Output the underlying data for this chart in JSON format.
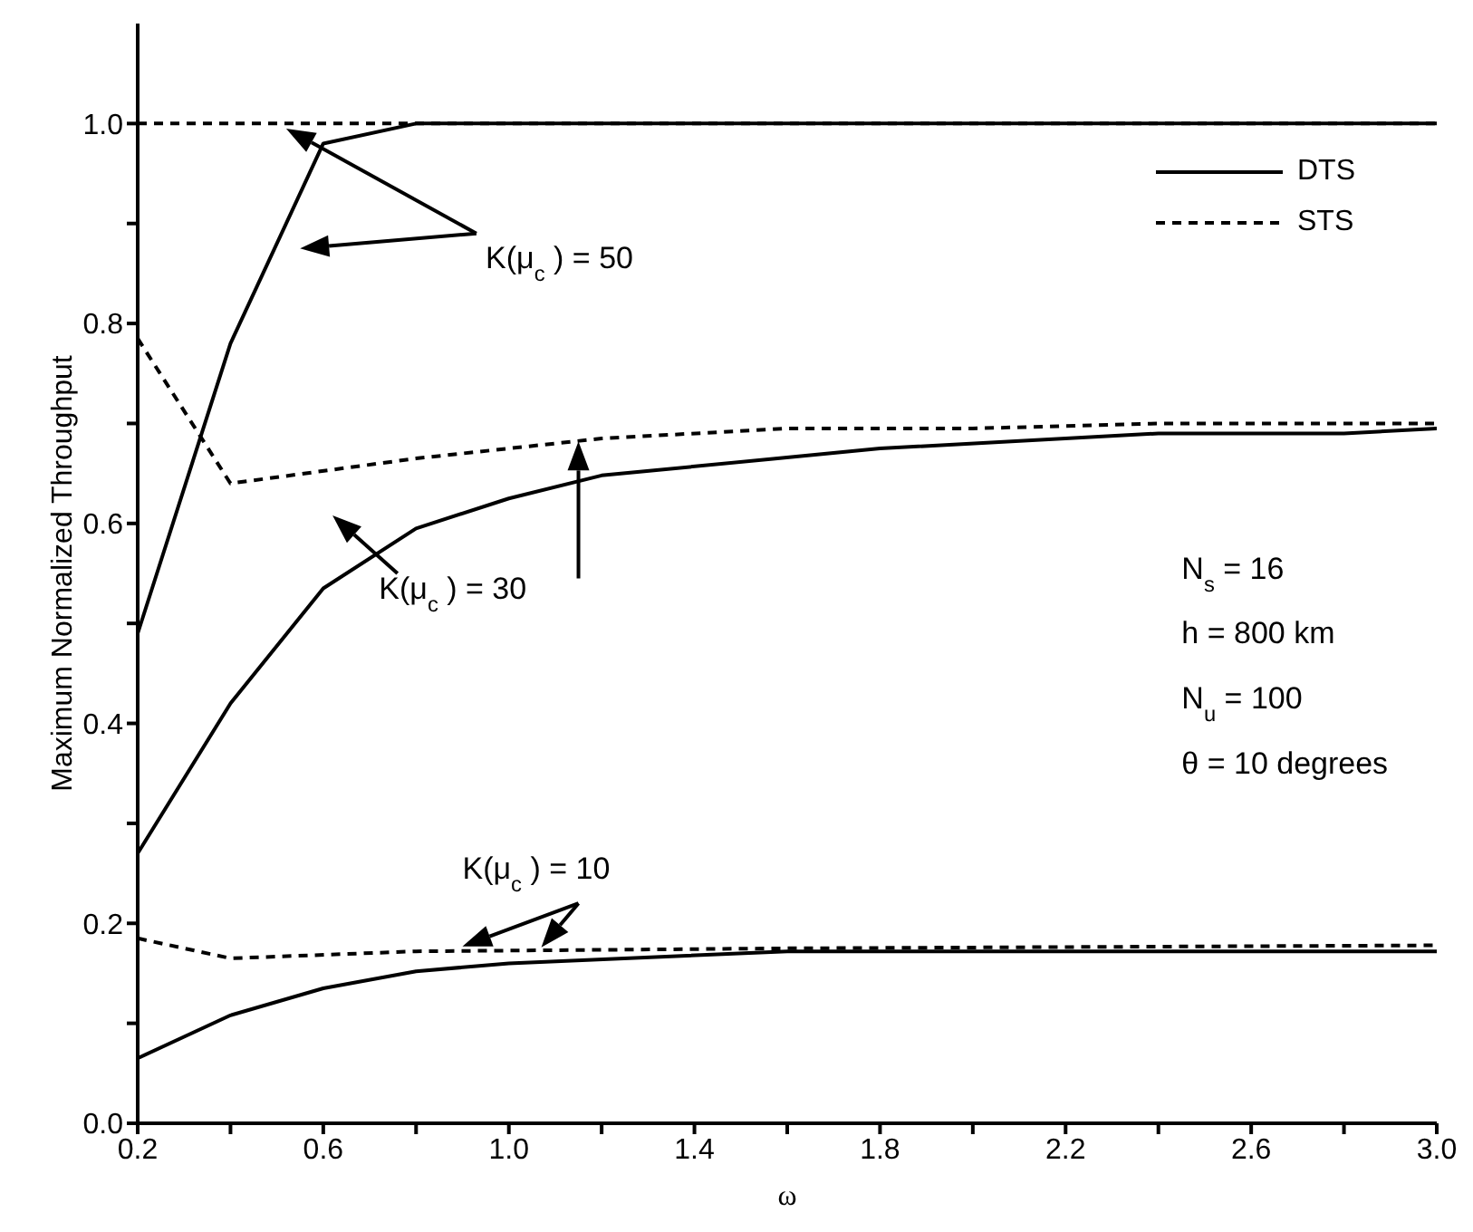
{
  "chart_data": {
    "type": "line",
    "xlabel": "ω",
    "ylabel": "Maximum Normalized Throughput",
    "xlim": [
      0.2,
      3.0
    ],
    "ylim": [
      0,
      1.1
    ],
    "xticks": [
      0.2,
      {
        "value": 0.4,
        "label": null
      },
      0.6,
      {
        "value": 0.8,
        "label": null
      },
      {
        "value": 1.0,
        "label": "1.0"
      },
      {
        "value": 1.2,
        "label": null
      },
      1.4,
      {
        "value": 1.6,
        "label": null
      },
      1.8,
      {
        "value": 2.0,
        "label": null
      },
      2.2,
      {
        "value": 2.4,
        "label": null
      },
      2.6,
      {
        "value": 2.8,
        "label": null
      },
      {
        "value": 3.0,
        "label": "3.0"
      }
    ],
    "yticks": [
      {
        "value": 0,
        "label": "0.0"
      },
      {
        "value": 0.1,
        "label": null
      },
      0.2,
      {
        "value": 0.3,
        "label": null
      },
      0.4,
      {
        "value": 0.5,
        "label": null
      },
      0.6,
      {
        "value": 0.7,
        "label": null
      },
      0.8,
      {
        "value": 0.9,
        "label": null
      },
      {
        "value": 1.0,
        "label": "1.0"
      }
    ],
    "grid": false,
    "legend": "top right",
    "marker": "none",
    "series": [
      {
        "name": "DTS",
        "color": "#000000",
        "line_style": "solid",
        "x": [
          0.2,
          0.4,
          0.6,
          0.8,
          1.0,
          3.0
        ],
        "values": [
          0.49,
          0.78,
          0.98,
          1.0,
          1.0,
          1.0
        ]
      },
      {
        "name": "STS",
        "color": "#000000",
        "line_style": "dashed",
        "x": [
          0.2,
          0.6,
          1.0,
          3.0
        ],
        "values": [
          1.0,
          1.0,
          1.0,
          1.0
        ]
      },
      {
        "color": "#000000",
        "line_style": "solid",
        "x": [
          0.2,
          0.4,
          0.6,
          0.8,
          1.0,
          1.2,
          1.8,
          2.4,
          2.8,
          3.0
        ],
        "values": [
          0.27,
          0.42,
          0.535,
          0.595,
          0.625,
          0.648,
          0.675,
          0.69,
          0.69,
          0.695
        ]
      },
      {
        "color": "#000000",
        "line_style": "dashed",
        "x": [
          0.2,
          0.4,
          0.8,
          1.2,
          1.6,
          2.0,
          2.4,
          3.0
        ],
        "values": [
          0.785,
          0.64,
          0.665,
          0.685,
          0.695,
          0.695,
          0.7,
          0.7
        ]
      },
      {
        "color": "#000000",
        "line_style": "solid",
        "x": [
          0.2,
          0.4,
          0.6,
          0.8,
          1.0,
          1.6,
          3.0
        ],
        "values": [
          0.065,
          0.108,
          0.135,
          0.152,
          0.16,
          0.172,
          0.172
        ]
      },
      {
        "color": "#000000",
        "line_style": "dashed",
        "x": [
          0.2,
          0.4,
          0.8,
          1.6,
          3.0
        ],
        "values": [
          0.185,
          0.165,
          0.172,
          0.175,
          0.178
        ]
      }
    ],
    "annotations": [
      "K(μ$_{c}$) = 50",
      "K(μ$_{c}$) = 30",
      "K(μ$_{c}$) = 10",
      "N$_{s}$ = 16",
      "h = 800 km",
      "N$_{u}$ = 100",
      "θ = 10 degrees"
    ]
  }
}
